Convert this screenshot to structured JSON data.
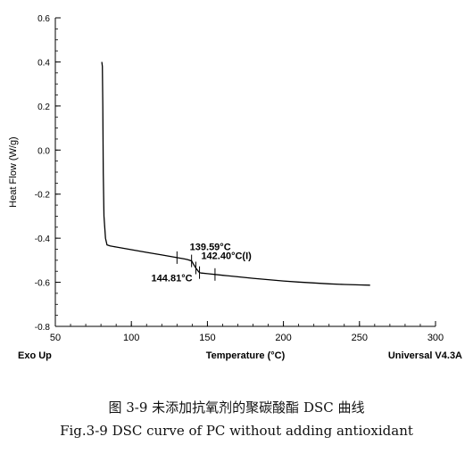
{
  "chart_data": {
    "type": "line",
    "title": "",
    "xlabel": "Temperature (°C)",
    "ylabel": "Heat Flow (W/g)",
    "xlim": [
      50,
      300
    ],
    "ylim": [
      -0.8,
      0.6
    ],
    "x_ticks": [
      "50",
      "100",
      "150",
      "200",
      "250",
      "300"
    ],
    "y_ticks": [
      "0.6",
      "0.4",
      "0.2",
      "0.0",
      "-0.2",
      "-0.4",
      "-0.6",
      "-0.8"
    ],
    "corner_left": "Exo Up",
    "corner_right": "Universal V4.3A",
    "grid": false,
    "series": [
      {
        "x": [
          80.6,
          80.9,
          81.2,
          81.5,
          82,
          83,
          84,
          86,
          90,
          100,
          110,
          120,
          130,
          135,
          137,
          139.6,
          141,
          142.4,
          144,
          144.8,
          146,
          150,
          160,
          170,
          180,
          190,
          200,
          210,
          220,
          230,
          240,
          250,
          257
        ],
        "y": [
          0.4,
          0.38,
          0.2,
          -0.1,
          -0.3,
          -0.4,
          -0.43,
          -0.435,
          -0.44,
          -0.452,
          -0.464,
          -0.476,
          -0.488,
          -0.494,
          -0.497,
          -0.503,
          -0.52,
          -0.535,
          -0.55,
          -0.556,
          -0.558,
          -0.561,
          -0.568,
          -0.575,
          -0.582,
          -0.588,
          -0.594,
          -0.599,
          -0.603,
          -0.607,
          -0.61,
          -0.612,
          -0.613
        ]
      }
    ],
    "annotations": [
      {
        "text": "139.59°C",
        "x": 139.59,
        "y": -0.503
      },
      {
        "text": "142.40°C(I)",
        "x": 142.4,
        "y": -0.535
      },
      {
        "text": "144.81°C",
        "x": 144.81,
        "y": -0.556
      }
    ],
    "markers_x": [
      130,
      139.59,
      142.4,
      144.81,
      155
    ]
  },
  "captions": {
    "cn": "图 3-9  未添加抗氧剂的聚碳酸酯 DSC 曲线",
    "en": "Fig.3-9 DSC curve of PC without adding antioxidant"
  }
}
